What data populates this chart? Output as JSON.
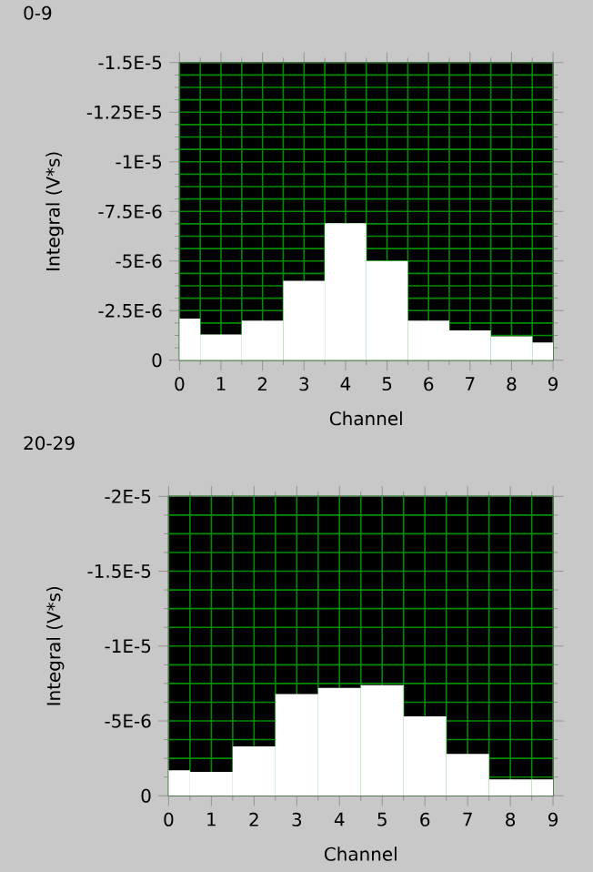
{
  "chart_data": [
    {
      "type": "bar",
      "title": "0-9",
      "xlabel": "Channel",
      "ylabel": "Integral (V*s)",
      "x": [
        0,
        1,
        2,
        3,
        4,
        5,
        6,
        7,
        8,
        9
      ],
      "series": [
        {
          "color": "#ffffff",
          "values": [
            -2.1e-06,
            -1.3e-06,
            -2e-06,
            -4e-06,
            -6.9e-06,
            -5e-06,
            -2e-06,
            -1.5e-06,
            -1.2e-06,
            -9e-07
          ]
        }
      ],
      "xlim": [
        0,
        9
      ],
      "xticks": [
        0,
        {
          "value": 0.5,
          "label": null
        },
        1,
        {
          "value": 1.5,
          "label": null
        },
        2,
        {
          "value": 2.5,
          "label": null
        },
        3,
        {
          "value": 3.5,
          "label": null
        },
        4,
        {
          "value": 4.5,
          "label": null
        },
        5,
        {
          "value": 5.5,
          "label": null
        },
        6,
        {
          "value": 6.5,
          "label": null
        },
        7,
        {
          "value": 7.5,
          "label": null
        },
        8,
        {
          "value": 8.5,
          "label": null
        },
        9
      ],
      "ylim": [
        0,
        -1.5e-05
      ],
      "yticks": [
        0,
        {
          "value": -6.25e-07,
          "label": null
        },
        {
          "value": -1.25e-06,
          "label": null
        },
        {
          "value": -1.875e-06,
          "label": null
        },
        {
          "value": -2.5e-06,
          "label": "-2.5E-6"
        },
        {
          "value": -3.125e-06,
          "label": null
        },
        {
          "value": -3.75e-06,
          "label": null
        },
        {
          "value": -4.375e-06,
          "label": null
        },
        {
          "value": -5e-06,
          "label": "-5E-6"
        },
        {
          "value": -5.625e-06,
          "label": null
        },
        {
          "value": -6.25e-06,
          "label": null
        },
        {
          "value": -6.875e-06,
          "label": null
        },
        {
          "value": -7.5e-06,
          "label": "-7.5E-6"
        },
        {
          "value": -8.125e-06,
          "label": null
        },
        {
          "value": -8.75e-06,
          "label": null
        },
        {
          "value": -9.375e-06,
          "label": null
        },
        {
          "value": -1e-05,
          "label": "-1E-5"
        },
        {
          "value": -1.0625e-05,
          "label": null
        },
        {
          "value": -1.125e-05,
          "label": null
        },
        {
          "value": -1.1875e-05,
          "label": null
        },
        {
          "value": -1.25e-05,
          "label": "-1.25E-5"
        },
        {
          "value": -1.3125e-05,
          "label": null
        },
        {
          "value": -1.375e-05,
          "label": null
        },
        {
          "value": -1.4375e-05,
          "label": null
        },
        {
          "value": -1.5e-05,
          "label": "-1.5E-5"
        }
      ],
      "grid": true
    },
    {
      "type": "bar",
      "title": "20-29",
      "xlabel": "Channel",
      "ylabel": "Integral (V*s)",
      "x": [
        0,
        1,
        2,
        3,
        4,
        5,
        6,
        7,
        8,
        9
      ],
      "series": [
        {
          "color": "#ffffff",
          "values": [
            -1.7e-06,
            -1.6e-06,
            -3.3e-06,
            -6.8e-06,
            -7.2e-06,
            -7.4e-06,
            -5.3e-06,
            -2.8e-06,
            -1.1e-06,
            -1.1e-06
          ]
        }
      ],
      "xlim": [
        0,
        9
      ],
      "xticks": [
        0,
        {
          "value": 0.5,
          "label": null
        },
        1,
        {
          "value": 1.5,
          "label": null
        },
        2,
        {
          "value": 2.5,
          "label": null
        },
        3,
        {
          "value": 3.5,
          "label": null
        },
        4,
        {
          "value": 4.5,
          "label": null
        },
        5,
        {
          "value": 5.5,
          "label": null
        },
        6,
        {
          "value": 6.5,
          "label": null
        },
        7,
        {
          "value": 7.5,
          "label": null
        },
        8,
        {
          "value": 8.5,
          "label": null
        },
        9
      ],
      "ylim": [
        0,
        -2e-05
      ],
      "yticks": [
        0,
        {
          "value": -1.25e-06,
          "label": null
        },
        {
          "value": -2.5e-06,
          "label": null
        },
        {
          "value": -3.75e-06,
          "label": null
        },
        {
          "value": -5e-06,
          "label": "-5E-6"
        },
        {
          "value": -6.25e-06,
          "label": null
        },
        {
          "value": -7.5e-06,
          "label": null
        },
        {
          "value": -8.75e-06,
          "label": null
        },
        {
          "value": -1e-05,
          "label": "-1E-5"
        },
        {
          "value": -1.125e-05,
          "label": null
        },
        {
          "value": -1.25e-05,
          "label": null
        },
        {
          "value": -1.375e-05,
          "label": null
        },
        {
          "value": -1.5e-05,
          "label": "-1.5E-5"
        },
        {
          "value": -1.625e-05,
          "label": null
        },
        {
          "value": -1.75e-05,
          "label": null
        },
        {
          "value": -1.875e-05,
          "label": null
        },
        {
          "value": -2e-05,
          "label": "-2E-5"
        }
      ],
      "grid": true
    }
  ]
}
